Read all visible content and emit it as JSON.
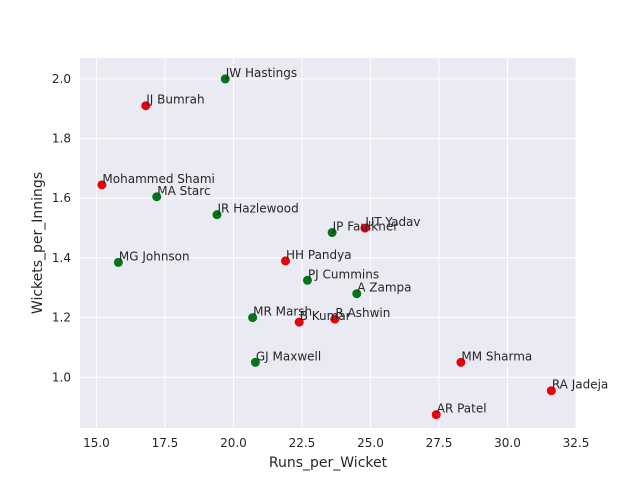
{
  "chart_data": {
    "type": "scatter",
    "title": "",
    "xlabel": "Runs_per_Wicket",
    "ylabel": "Wickets_per_Innings",
    "xlim": [
      14.4,
      32.5
    ],
    "ylim": [
      0.83,
      2.07
    ],
    "xticks": [
      15.0,
      17.5,
      20.0,
      22.5,
      25.0,
      27.5,
      30.0,
      32.5
    ],
    "xtick_labels": [
      "15.0",
      "17.5",
      "20.0",
      "22.5",
      "25.0",
      "27.5",
      "30.0",
      "32.5"
    ],
    "yticks": [
      1.0,
      1.2,
      1.4,
      1.6,
      1.8,
      2.0
    ],
    "ytick_labels": [
      "1.0",
      "1.2",
      "1.4",
      "1.6",
      "1.8",
      "2.0"
    ],
    "grid": true,
    "background": "#eaeaf2",
    "colors": {
      "red": "#e8000b",
      "green": "#017517"
    },
    "points": [
      {
        "label": "JW Hastings",
        "x": 19.7,
        "y": 2.0,
        "color": "green"
      },
      {
        "label": "JJ Bumrah",
        "x": 16.8,
        "y": 1.91,
        "color": "red"
      },
      {
        "label": "Mohammed Shami",
        "x": 15.2,
        "y": 1.645,
        "color": "red"
      },
      {
        "label": "MA Starc",
        "x": 17.2,
        "y": 1.605,
        "color": "green"
      },
      {
        "label": "JR Hazlewood",
        "x": 19.4,
        "y": 1.545,
        "color": "green"
      },
      {
        "label": "JP Faulkner",
        "x": 23.6,
        "y": 1.485,
        "color": "green"
      },
      {
        "label": "UT Yadav",
        "x": 24.8,
        "y": 1.5,
        "color": "red"
      },
      {
        "label": "MG Johnson",
        "x": 15.8,
        "y": 1.385,
        "color": "green"
      },
      {
        "label": "HH Pandya",
        "x": 21.9,
        "y": 1.39,
        "color": "red"
      },
      {
        "label": "PJ Cummins",
        "x": 22.7,
        "y": 1.325,
        "color": "green"
      },
      {
        "label": "A Zampa",
        "x": 24.5,
        "y": 1.28,
        "color": "green"
      },
      {
        "label": "MR Marsh",
        "x": 20.7,
        "y": 1.2,
        "color": "green"
      },
      {
        "label": "B Kumar",
        "x": 22.4,
        "y": 1.185,
        "color": "red"
      },
      {
        "label": "R Ashwin",
        "x": 23.7,
        "y": 1.195,
        "color": "red"
      },
      {
        "label": "GJ Maxwell",
        "x": 20.8,
        "y": 1.05,
        "color": "green"
      },
      {
        "label": "MM Sharma",
        "x": 28.3,
        "y": 1.05,
        "color": "red"
      },
      {
        "label": "RA Jadeja",
        "x": 31.6,
        "y": 0.955,
        "color": "red"
      },
      {
        "label": "AR Patel",
        "x": 27.4,
        "y": 0.875,
        "color": "red"
      }
    ]
  }
}
